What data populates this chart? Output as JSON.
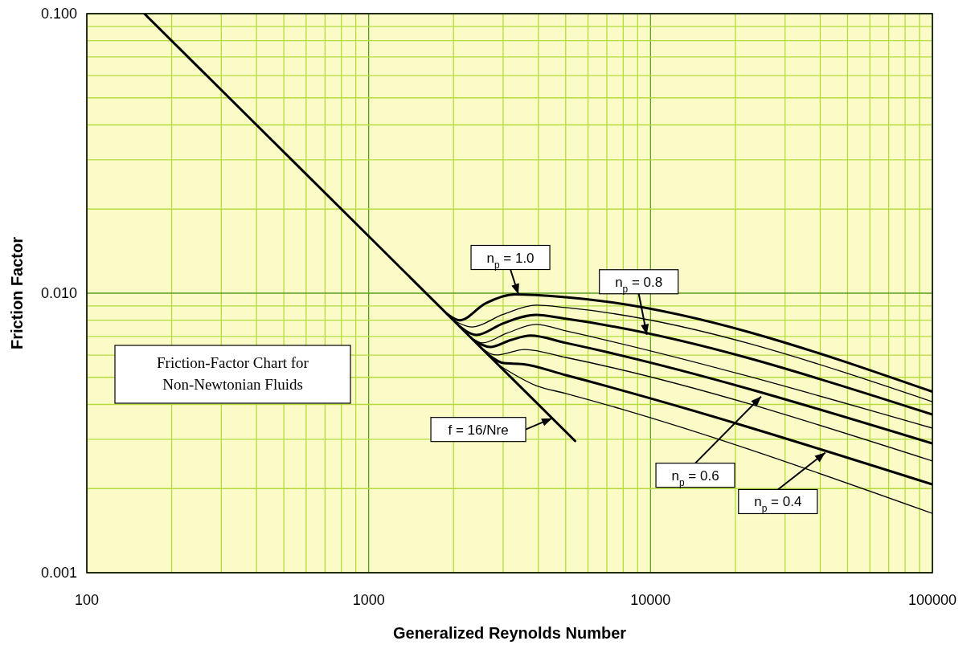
{
  "chart_data": {
    "type": "line",
    "title": "Friction-Factor Chart for Non-Newtonian Fluids",
    "xlabel": "Generalized Reynolds Number",
    "ylabel": "Friction Factor",
    "log": "xy",
    "grid": true,
    "line_style": "solid",
    "xlim": [
      100,
      100000
    ],
    "xticks": [
      100,
      {
        "value": 200,
        "label": null
      },
      {
        "value": 300,
        "label": null
      },
      {
        "value": 400,
        "label": null
      },
      {
        "value": 500,
        "label": null
      },
      {
        "value": 600,
        "label": null
      },
      {
        "value": 700,
        "label": null
      },
      {
        "value": 800,
        "label": null
      },
      {
        "value": 900,
        "label": null
      },
      1000,
      {
        "value": 2000,
        "label": null
      },
      {
        "value": 3000,
        "label": null
      },
      {
        "value": 4000,
        "label": null
      },
      {
        "value": 5000,
        "label": null
      },
      {
        "value": 6000,
        "label": null
      },
      {
        "value": 7000,
        "label": null
      },
      {
        "value": 8000,
        "label": null
      },
      {
        "value": 9000,
        "label": null
      },
      10000,
      {
        "value": 20000,
        "label": null
      },
      {
        "value": 30000,
        "label": null
      },
      {
        "value": 40000,
        "label": null
      },
      {
        "value": 50000,
        "label": null
      },
      {
        "value": 60000,
        "label": null
      },
      {
        "value": 70000,
        "label": null
      },
      {
        "value": 80000,
        "label": null
      },
      {
        "value": 90000,
        "label": null
      },
      100000
    ],
    "ylim": [
      0.001,
      0.1
    ],
    "yticks": [
      {
        "value": 0.001,
        "label": "0.001"
      },
      {
        "value": 0.002,
        "label": null
      },
      {
        "value": 0.003,
        "label": null
      },
      {
        "value": 0.004,
        "label": null
      },
      {
        "value": 0.005,
        "label": null
      },
      {
        "value": 0.006,
        "label": null
      },
      {
        "value": 0.007,
        "label": null
      },
      {
        "value": 0.008,
        "label": null
      },
      {
        "value": 0.009,
        "label": null
      },
      {
        "value": 0.01,
        "label": "0.010"
      },
      {
        "value": 0.02,
        "label": null
      },
      {
        "value": 0.03,
        "label": null
      },
      {
        "value": 0.04,
        "label": null
      },
      {
        "value": 0.05,
        "label": null
      },
      {
        "value": 0.06,
        "label": null
      },
      {
        "value": 0.07,
        "label": null
      },
      {
        "value": 0.08,
        "label": null
      },
      {
        "value": 0.09,
        "label": null
      },
      {
        "value": 0.1,
        "label": "0.100"
      }
    ],
    "series": [
      {
        "color": "#000000",
        "x": [
          160,
          5400
        ],
        "values": [
          0.1,
          0.00296
        ]
      },
      {
        "color": "#000000",
        "x": [
          1900,
          2100,
          2600,
          3300,
          5000,
          100000
        ],
        "values": [
          0.00842,
          0.008,
          0.0092,
          0.0099,
          0.00968,
          0.00444
        ]
      },
      {
        "color": "#000000",
        "x": [
          2000,
          2322,
          3000,
          3926,
          5000,
          100000
        ],
        "values": [
          0.008,
          0.00757,
          0.0084,
          0.00906,
          0.00888,
          0.00409
        ]
      },
      {
        "color": "#000000",
        "x": [
          2100,
          2415,
          3000,
          3926,
          5000,
          100000
        ],
        "values": [
          0.00762,
          0.00709,
          0.0078,
          0.00836,
          0.0081,
          0.00368
        ]
      },
      {
        "color": "#000000",
        "x": [
          2200,
          2529,
          3100,
          3926,
          5000,
          100000
        ],
        "values": [
          0.00727,
          0.00664,
          0.0072,
          0.00773,
          0.00733,
          0.00329
        ]
      },
      {
        "color": "#000000",
        "x": [
          2350,
          2700,
          3200,
          3750,
          5000,
          100000
        ],
        "values": [
          0.00681,
          0.00642,
          0.0068,
          0.00705,
          0.00664,
          0.0029
        ]
      },
      {
        "color": "#000000",
        "x": [
          2450,
          2827,
          3581,
          5000,
          100000
        ],
        "values": [
          0.00653,
          0.00601,
          0.00629,
          0.00589,
          0.00251
        ]
      },
      {
        "color": "#000000",
        "x": [
          2650,
          3020,
          3509,
          5000,
          100000
        ],
        "values": [
          0.00604,
          0.00562,
          0.00558,
          0.00509,
          0.00207
        ]
      },
      {
        "color": "#000000",
        "x": [
          2900,
          3926,
          5000,
          100000
        ],
        "values": [
          0.00552,
          0.00467,
          0.00438,
          0.00163
        ]
      }
    ],
    "annotations": [
      {
        "text": "n$_{p}$ = 1.0",
        "x": 3400,
        "y": 0.0099
      },
      {
        "text": "n$_{p}$ = 0.8",
        "x": 9700,
        "y": 0.0071
      },
      {
        "text": "n$_{p}$ = 0.6",
        "x": 24700,
        "y": 0.00427
      },
      {
        "text": "n$_{p}$ = 0.4",
        "x": 41700,
        "y": 0.00269
      },
      {
        "text": "f = 16/Nre",
        "x": 4480,
        "y": 0.00357
      }
    ]
  }
}
